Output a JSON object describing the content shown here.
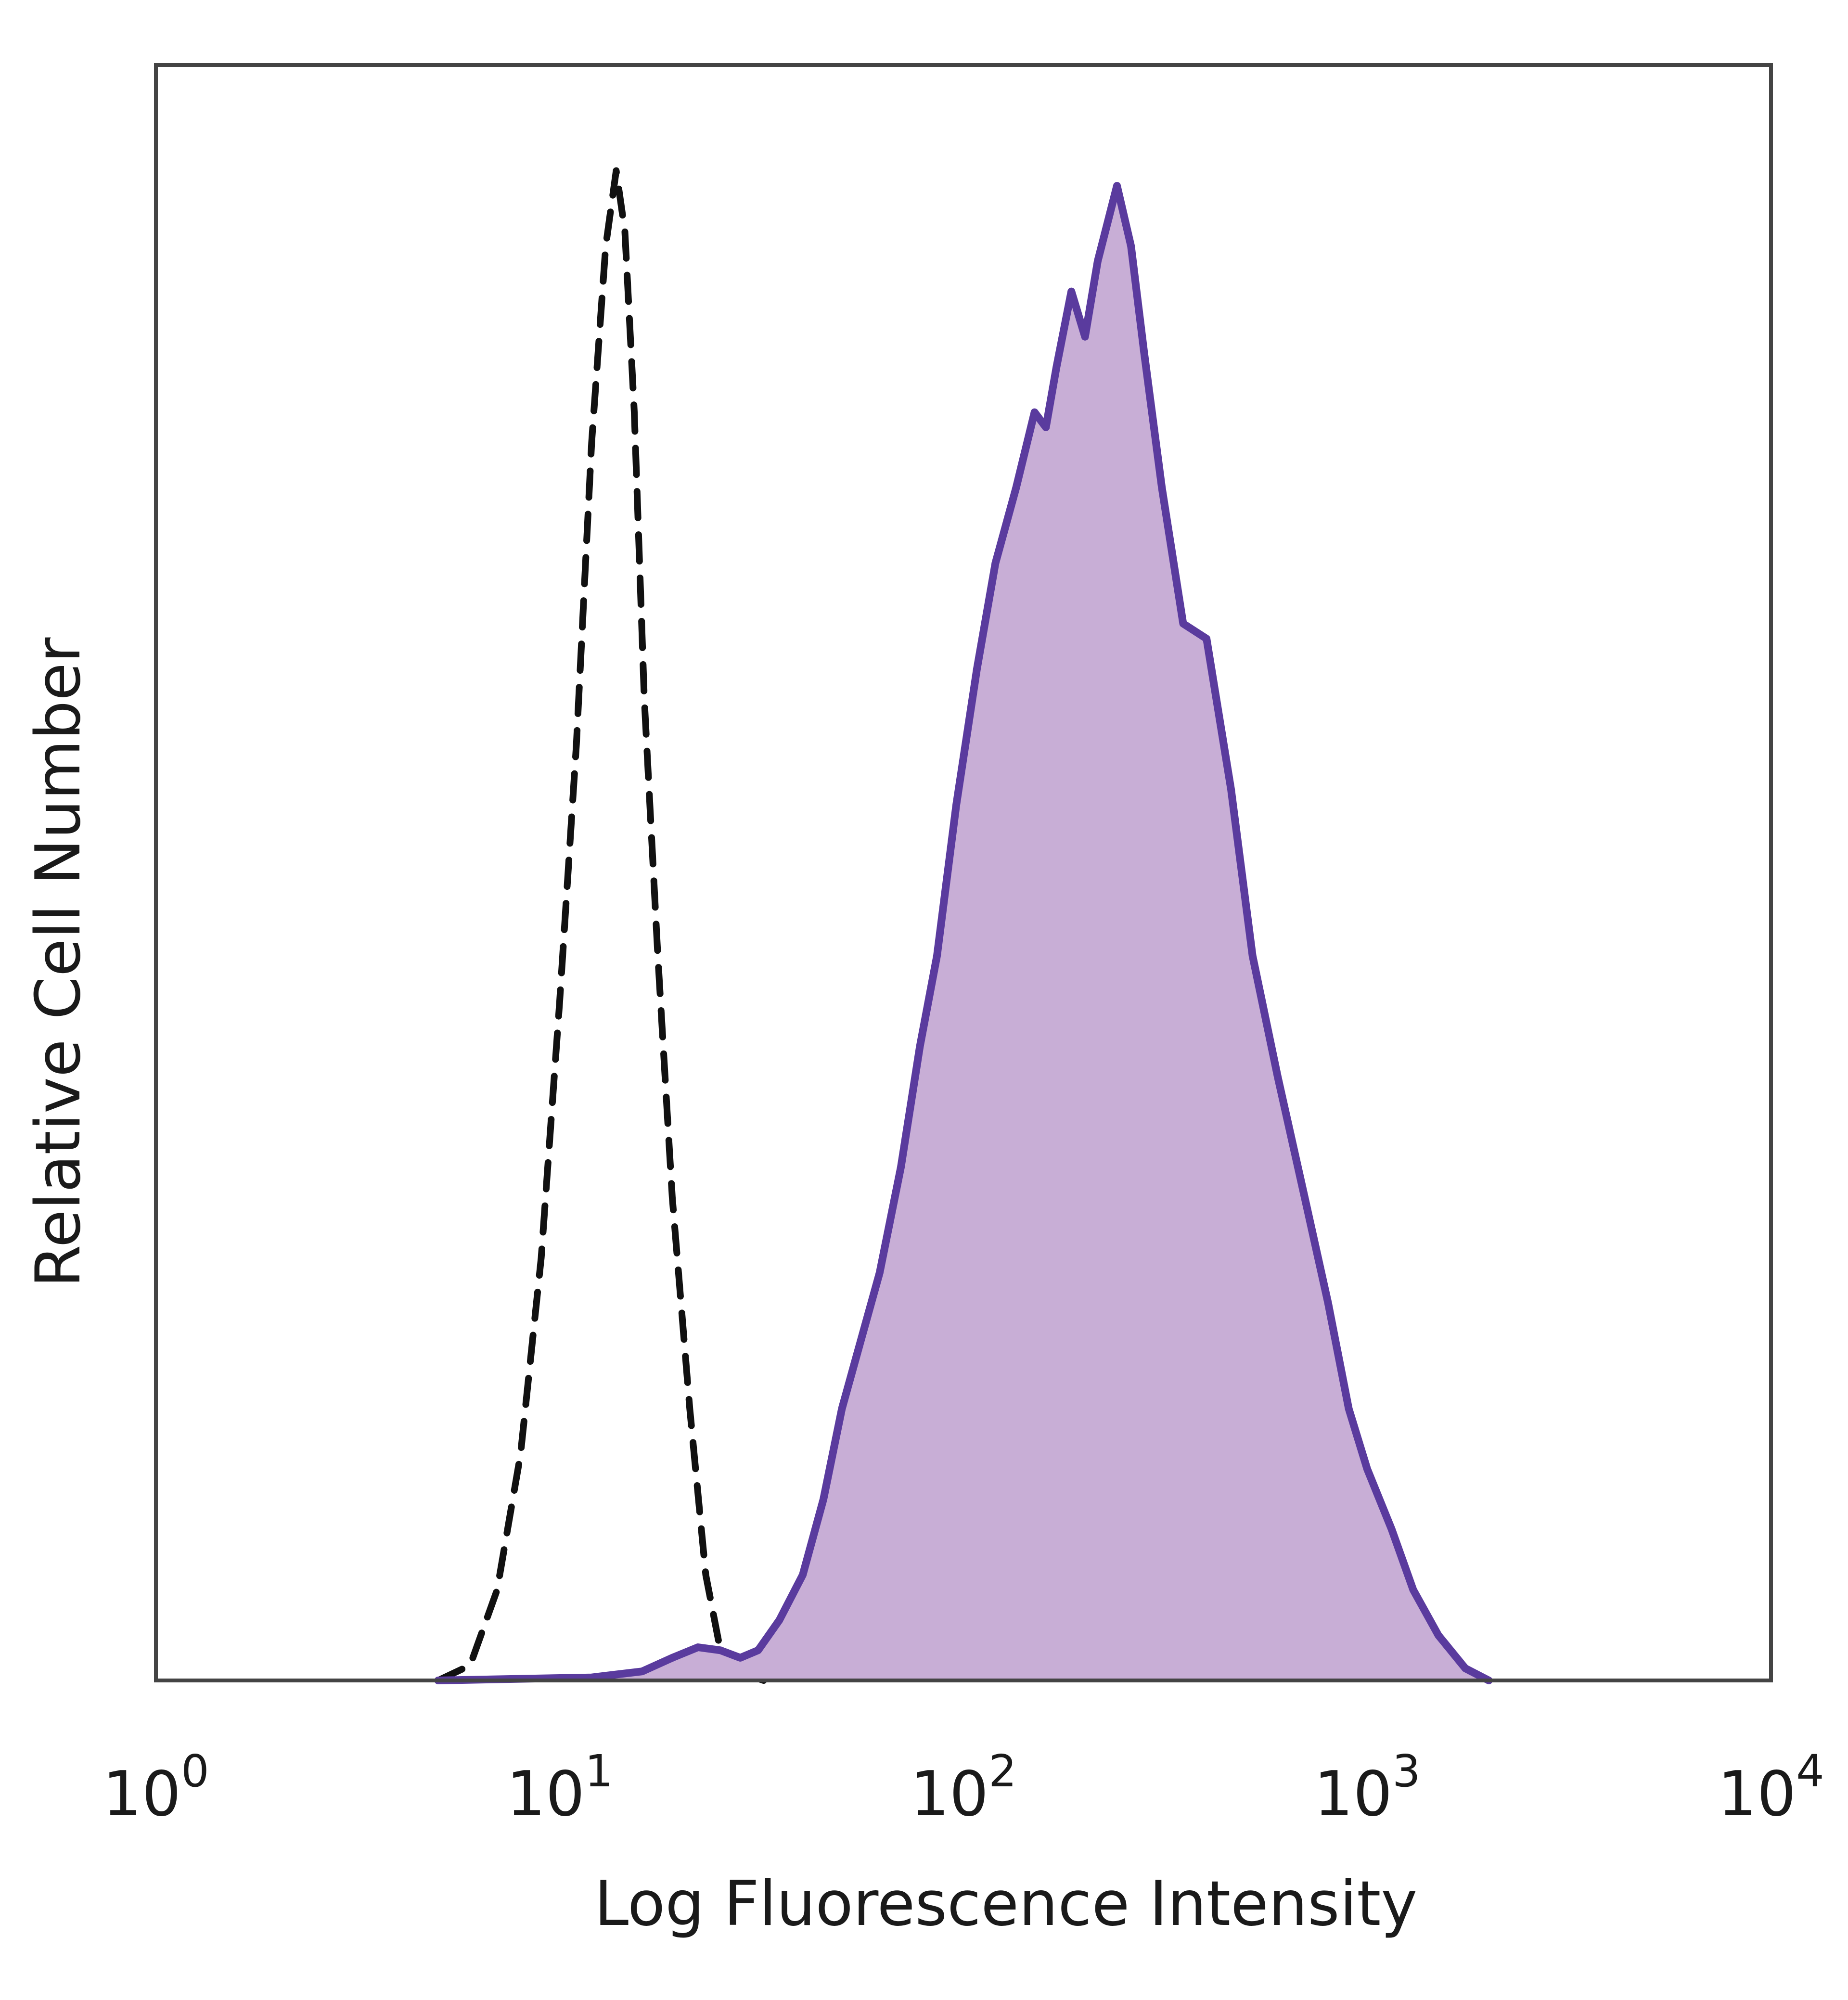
{
  "chart_data": {
    "type": "area",
    "title": "",
    "xlabel": "Log Fluorescence Intensity",
    "ylabel": "Relative Cell Number",
    "xscale": "log",
    "xlim": [
      1,
      10000
    ],
    "ylim": [
      0,
      1.07
    ],
    "x_ticks": [
      {
        "base": "10",
        "exp": "0",
        "value": 1
      },
      {
        "base": "10",
        "exp": "1",
        "value": 10
      },
      {
        "base": "10",
        "exp": "2",
        "value": 100
      },
      {
        "base": "10",
        "exp": "3",
        "value": 1000
      },
      {
        "base": "10",
        "exp": "4",
        "value": 10000
      }
    ],
    "grid": false,
    "legend": "none",
    "series": [
      {
        "style": "dashed",
        "color": "#111111",
        "fill": "none",
        "points": [
          [
            5.0,
            0.0
          ],
          [
            6.0,
            0.01
          ],
          [
            7.0,
            0.06
          ],
          [
            8.0,
            0.15
          ],
          [
            9.0,
            0.28
          ],
          [
            10.0,
            0.45
          ],
          [
            11.0,
            0.62
          ],
          [
            12.0,
            0.82
          ],
          [
            13.0,
            0.95
          ],
          [
            13.8,
            1.0
          ],
          [
            14.5,
            0.96
          ],
          [
            15.3,
            0.84
          ],
          [
            16.2,
            0.65
          ],
          [
            17.5,
            0.48
          ],
          [
            19.0,
            0.32
          ],
          [
            21.0,
            0.18
          ],
          [
            23.0,
            0.07
          ],
          [
            25.0,
            0.02
          ],
          [
            28.0,
            0.005
          ],
          [
            32.0,
            0.0
          ]
        ]
      },
      {
        "style": "solid",
        "color": "#5a3b9e",
        "fill": "#c8aed6",
        "points": [
          [
            5.0,
            0.0
          ],
          [
            12.0,
            0.002
          ],
          [
            16.0,
            0.006
          ],
          [
            19.0,
            0.015
          ],
          [
            22.0,
            0.022
          ],
          [
            25.0,
            0.02
          ],
          [
            28.0,
            0.015
          ],
          [
            31.0,
            0.02
          ],
          [
            35.0,
            0.04
          ],
          [
            40.0,
            0.07
          ],
          [
            45.0,
            0.12
          ],
          [
            50.0,
            0.18
          ],
          [
            55.0,
            0.22
          ],
          [
            62.0,
            0.27
          ],
          [
            70.0,
            0.34
          ],
          [
            78.0,
            0.42
          ],
          [
            86.0,
            0.48
          ],
          [
            96.0,
            0.58
          ],
          [
            108.0,
            0.67
          ],
          [
            120.0,
            0.74
          ],
          [
            135.0,
            0.79
          ],
          [
            150.0,
            0.84
          ],
          [
            160.0,
            0.83
          ],
          [
            170.0,
            0.87
          ],
          [
            185.0,
            0.92
          ],
          [
            200.0,
            0.89
          ],
          [
            215.0,
            0.94
          ],
          [
            240.0,
            0.99
          ],
          [
            260.0,
            0.95
          ],
          [
            280.0,
            0.88
          ],
          [
            310.0,
            0.79
          ],
          [
            350.0,
            0.7
          ],
          [
            400.0,
            0.69
          ],
          [
            460.0,
            0.59
          ],
          [
            520.0,
            0.48
          ],
          [
            600.0,
            0.4
          ],
          [
            700.0,
            0.32
          ],
          [
            800.0,
            0.25
          ],
          [
            900.0,
            0.18
          ],
          [
            1000.0,
            0.14
          ],
          [
            1150.0,
            0.1
          ],
          [
            1300.0,
            0.06
          ],
          [
            1500.0,
            0.03
          ],
          [
            1750.0,
            0.008
          ],
          [
            2000.0,
            0.0
          ]
        ]
      }
    ]
  }
}
